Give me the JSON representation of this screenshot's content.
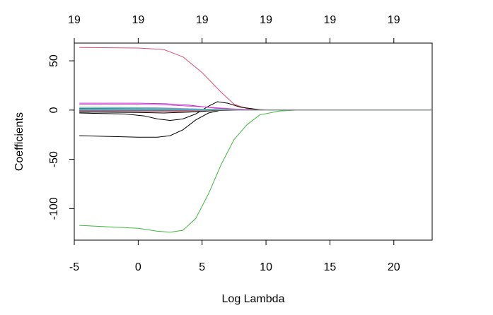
{
  "chart_data": {
    "type": "line",
    "title": "",
    "xlabel": "Log Lambda",
    "ylabel": "Coefficients",
    "xlim": [
      -5,
      23
    ],
    "ylim": [
      -132,
      68
    ],
    "grid": false,
    "legend": "none",
    "x_ticks": [
      "-5",
      "0",
      "5",
      "10",
      "15",
      "20"
    ],
    "x_tick_values": [
      -5,
      0,
      5,
      10,
      15,
      20
    ],
    "y_ticks": [
      "50",
      "0",
      "-50",
      "-100"
    ],
    "y_tick_values": [
      50,
      0,
      -50,
      -100
    ],
    "top_ticks": [
      "19",
      "19",
      "19",
      "19",
      "19",
      "19"
    ],
    "series": [
      {
        "color": "#e05070",
        "points": [
          [
            -4.6,
            63.5
          ],
          [
            0,
            63
          ],
          [
            2,
            61.5
          ],
          [
            3.5,
            54
          ],
          [
            5,
            38
          ],
          [
            6.5,
            18
          ],
          [
            7.5,
            6
          ],
          [
            8.5,
            1.5
          ],
          [
            10,
            0.2
          ],
          [
            12,
            0
          ],
          [
            23,
            0
          ]
        ]
      },
      {
        "color": "#40b840",
        "points": [
          [
            -4.6,
            -117
          ],
          [
            0,
            -120
          ],
          [
            1.5,
            -123
          ],
          [
            2.5,
            -124
          ],
          [
            3.5,
            -122
          ],
          [
            4.5,
            -110
          ],
          [
            5.5,
            -85
          ],
          [
            6.5,
            -55
          ],
          [
            7.5,
            -30
          ],
          [
            8.5,
            -15
          ],
          [
            9.5,
            -5
          ],
          [
            11,
            -1
          ],
          [
            12.5,
            0
          ],
          [
            23,
            0
          ]
        ]
      },
      {
        "color": "#000000",
        "points": [
          [
            -4.6,
            -26
          ],
          [
            0,
            -27.5
          ],
          [
            1.5,
            -27.5
          ],
          [
            2.5,
            -26
          ],
          [
            3.5,
            -20
          ],
          [
            4.5,
            -10
          ],
          [
            5.5,
            -3
          ],
          [
            6.5,
            0
          ],
          [
            8,
            0.5
          ],
          [
            10,
            0.2
          ],
          [
            12,
            0
          ],
          [
            23,
            0
          ]
        ]
      },
      {
        "color": "#000000",
        "points": [
          [
            -4.6,
            -3
          ],
          [
            -1,
            -4
          ],
          [
            0.5,
            -6
          ],
          [
            1.5,
            -9
          ],
          [
            2.5,
            -10.5
          ],
          [
            3.5,
            -9
          ],
          [
            4.5,
            -4
          ],
          [
            5.5,
            4
          ],
          [
            6.2,
            8.5
          ],
          [
            7,
            7
          ],
          [
            8,
            3
          ],
          [
            9.5,
            0.5
          ],
          [
            11,
            0
          ],
          [
            23,
            0
          ]
        ]
      },
      {
        "color": "#b03ac8",
        "points": [
          [
            -4.6,
            7
          ],
          [
            0,
            7
          ],
          [
            2,
            6.5
          ],
          [
            4,
            5
          ],
          [
            5,
            3.5
          ],
          [
            6,
            2
          ],
          [
            7.5,
            1
          ],
          [
            9,
            0.3
          ],
          [
            11,
            0
          ],
          [
            23,
            0
          ]
        ]
      },
      {
        "color": "#e040e0",
        "points": [
          [
            -4.6,
            6
          ],
          [
            0,
            6
          ],
          [
            2,
            5.5
          ],
          [
            4,
            4
          ],
          [
            6,
            2.5
          ],
          [
            7.5,
            1.2
          ],
          [
            9,
            0.3
          ],
          [
            11,
            0
          ],
          [
            23,
            0
          ]
        ]
      },
      {
        "color": "#30c8d8",
        "points": [
          [
            -4.6,
            2
          ],
          [
            1,
            2
          ],
          [
            3,
            1.5
          ],
          [
            5,
            1
          ],
          [
            6.5,
            0.6
          ],
          [
            8,
            0.2
          ],
          [
            10,
            0
          ],
          [
            23,
            0
          ]
        ]
      },
      {
        "color": "#2aa090",
        "points": [
          [
            -4.6,
            0.5
          ],
          [
            1,
            0.8
          ],
          [
            3,
            1
          ],
          [
            5,
            0.8
          ],
          [
            7,
            0.4
          ],
          [
            9,
            0.1
          ],
          [
            11,
            0
          ],
          [
            23,
            0
          ]
        ]
      },
      {
        "color": "#3050e0",
        "points": [
          [
            -4.6,
            -0.8
          ],
          [
            1,
            -0.5
          ],
          [
            3,
            -0.3
          ],
          [
            5,
            -0.1
          ],
          [
            7,
            0
          ],
          [
            23,
            0
          ]
        ]
      },
      {
        "color": "#208060",
        "points": [
          [
            -4.6,
            1.5
          ],
          [
            1,
            1.2
          ],
          [
            3,
            0.8
          ],
          [
            5,
            0.4
          ],
          [
            7,
            0.1
          ],
          [
            9,
            0
          ],
          [
            23,
            0
          ]
        ]
      },
      {
        "color": "#a0a0a0",
        "points": [
          [
            -4.6,
            3
          ],
          [
            1,
            2.5
          ],
          [
            3,
            1.8
          ],
          [
            5,
            1
          ],
          [
            7,
            0.4
          ],
          [
            9,
            0.1
          ],
          [
            11,
            0
          ],
          [
            23,
            0
          ]
        ]
      },
      {
        "color": "#d0b030",
        "points": [
          [
            -4.6,
            0.2
          ],
          [
            2,
            0.4
          ],
          [
            4,
            0.6
          ],
          [
            6,
            0.4
          ],
          [
            8,
            0.1
          ],
          [
            10,
            0
          ],
          [
            23,
            0
          ]
        ]
      },
      {
        "color": "#e06060",
        "points": [
          [
            -4.6,
            -1.2
          ],
          [
            1,
            -1.5
          ],
          [
            3,
            -1.5
          ],
          [
            5,
            -0.8
          ],
          [
            7,
            -0.2
          ],
          [
            9,
            0
          ],
          [
            23,
            0
          ]
        ]
      },
      {
        "color": "#5fd05f",
        "points": [
          [
            -4.6,
            -0.2
          ],
          [
            2,
            0
          ],
          [
            4,
            0.5
          ],
          [
            6,
            0.8
          ],
          [
            8,
            0.3
          ],
          [
            10,
            0
          ],
          [
            23,
            0
          ]
        ]
      },
      {
        "color": "#000000",
        "points": [
          [
            -4.6,
            -2
          ],
          [
            0,
            -2.5
          ],
          [
            2,
            -3
          ],
          [
            4,
            -2
          ],
          [
            6,
            -0.5
          ],
          [
            8,
            0
          ],
          [
            23,
            0
          ]
        ]
      },
      {
        "color": "#6080ff",
        "points": [
          [
            -4.6,
            1
          ],
          [
            2,
            1.2
          ],
          [
            4,
            1
          ],
          [
            6,
            0.5
          ],
          [
            8,
            0.1
          ],
          [
            10,
            0
          ],
          [
            23,
            0
          ]
        ]
      },
      {
        "color": "#c03070",
        "points": [
          [
            -4.6,
            -0.5
          ],
          [
            2,
            -0.6
          ],
          [
            4,
            -0.4
          ],
          [
            6,
            -0.1
          ],
          [
            8,
            0
          ],
          [
            23,
            0
          ]
        ]
      },
      {
        "color": "#40d0a0",
        "points": [
          [
            -4.6,
            0
          ],
          [
            2,
            0.2
          ],
          [
            4,
            0.3
          ],
          [
            6,
            0.2
          ],
          [
            8,
            0
          ],
          [
            23,
            0
          ]
        ]
      },
      {
        "color": "#909090",
        "points": [
          [
            -4.6,
            -1.5
          ],
          [
            2,
            -1.2
          ],
          [
            4,
            -0.7
          ],
          [
            6,
            -0.2
          ],
          [
            8,
            0
          ],
          [
            23,
            0
          ]
        ]
      }
    ]
  }
}
